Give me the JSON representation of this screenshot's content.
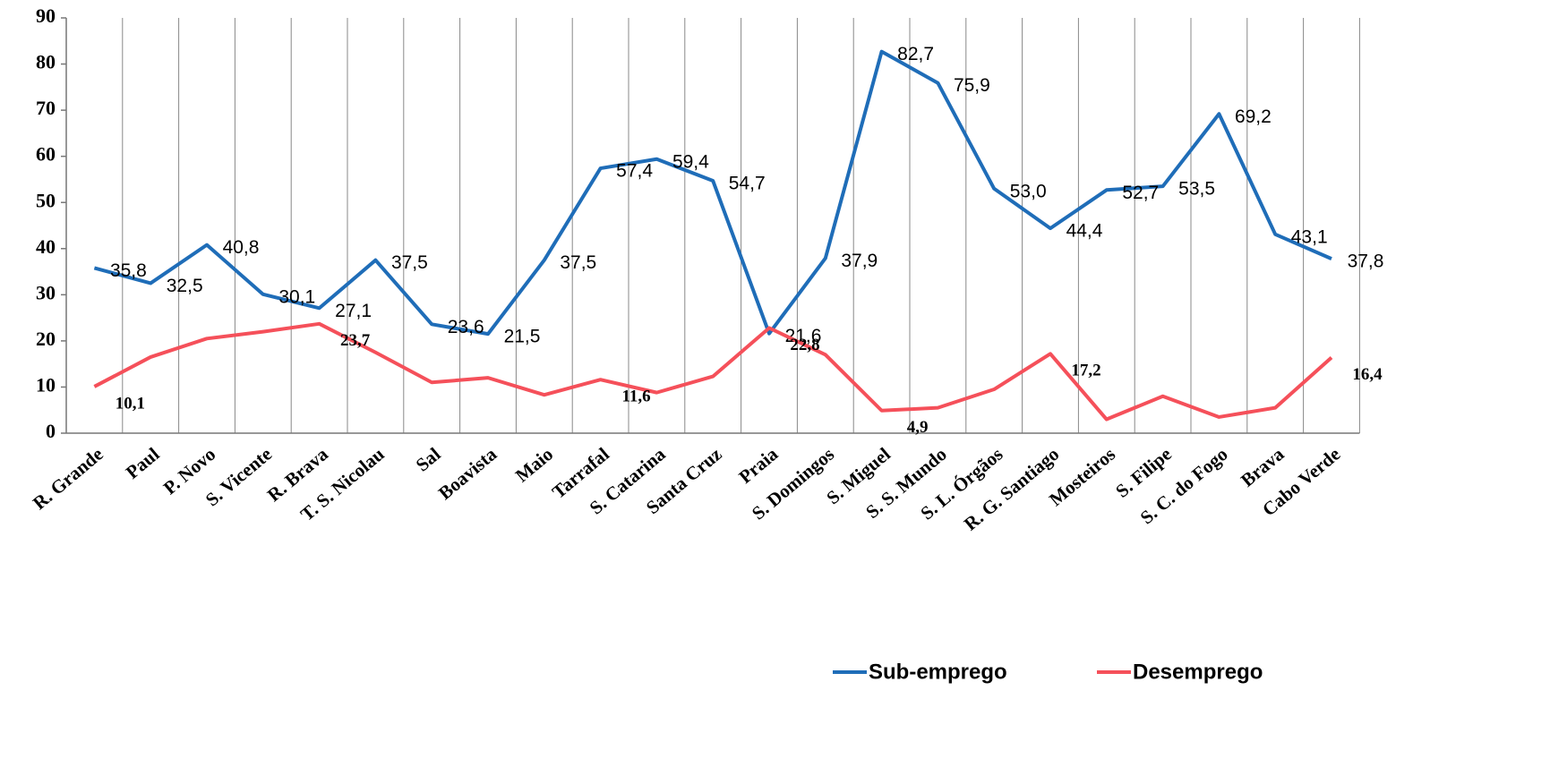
{
  "chart_data": {
    "type": "line",
    "categories": [
      "R. Grande",
      "Paul",
      "P. Novo",
      "S. Vicente",
      "R. Brava",
      "T. S. Nicolau",
      "Sal",
      "Boavista",
      "Maio",
      "Tarrafal",
      "S. Catarina",
      "Santa Cruz",
      "Praia",
      "S. Domingos",
      "S. Miguel",
      "S. S. Mundo",
      "S. L. Órgãos",
      "R. G. Santiago",
      "Mosteiros",
      "S. Filipe",
      "S. C. do Fogo",
      "Brava",
      "Cabo Verde"
    ],
    "series": [
      {
        "name": "Sub-emprego",
        "color": "#1f6db8",
        "values": [
          35.8,
          32.5,
          40.8,
          30.1,
          27.1,
          37.5,
          23.6,
          21.5,
          37.5,
          57.4,
          59.4,
          54.7,
          21.6,
          37.9,
          82.7,
          75.9,
          53.0,
          44.4,
          52.7,
          53.5,
          69.2,
          43.1,
          37.8
        ],
        "value_labels": [
          "35,8",
          "32,5",
          "40,8",
          "30,1",
          "27,1",
          "37,5",
          "23,6",
          "21,5",
          "37,5",
          "57,4",
          "59,4",
          "54,7",
          "21,6",
          "37,9",
          "82,7",
          "75,9",
          "53,0",
          "44,4",
          "52,7",
          "53,5",
          "69,2",
          "43,1",
          "37,8"
        ]
      },
      {
        "name": "Desemprego",
        "color": "#f5505a",
        "values": [
          10.1,
          16.5,
          20.5,
          22,
          23.7,
          17.5,
          11,
          12,
          8.3,
          11.6,
          8.8,
          12.3,
          22.8,
          17,
          4.9,
          5.5,
          9.5,
          17.2,
          3,
          8,
          3.5,
          5.5,
          16.4
        ],
        "value_labels": [
          "10,1",
          null,
          null,
          null,
          "23,7",
          null,
          null,
          null,
          null,
          "11,6",
          null,
          null,
          "22,8",
          null,
          "4,9",
          null,
          null,
          "17,2",
          null,
          null,
          null,
          null,
          "16,4"
        ]
      }
    ],
    "ylim": [
      0,
      90
    ],
    "yticks": [
      0,
      10,
      20,
      30,
      40,
      50,
      60,
      70,
      80,
      90
    ]
  }
}
